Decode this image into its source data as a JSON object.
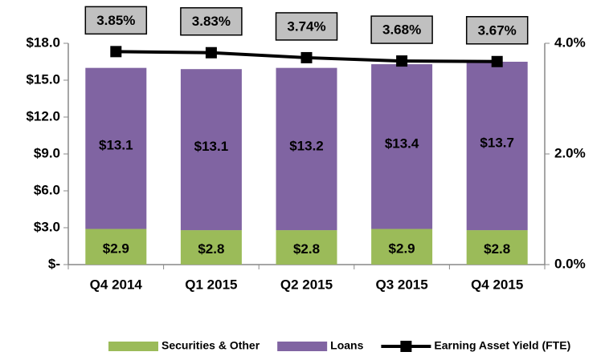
{
  "chart_data": {
    "type": "bar",
    "categories": [
      "Q4 2014",
      "Q1 2015",
      "Q2 2015",
      "Q3 2015",
      "Q4 2015"
    ],
    "series": [
      {
        "name": "Securities & Other",
        "color": "#9bbb59",
        "values": [
          2.9,
          2.8,
          2.8,
          2.9,
          2.8
        ],
        "value_labels": [
          "$2.9",
          "$2.8",
          "$2.8",
          "$2.9",
          "$2.8"
        ]
      },
      {
        "name": "Loans",
        "color": "#8064a2",
        "values": [
          13.1,
          13.1,
          13.2,
          13.4,
          13.7
        ],
        "value_labels": [
          "$13.1",
          "$13.1",
          "$13.2",
          "$13.4",
          "$13.7"
        ]
      },
      {
        "name": "Earning Asset Yield (FTE)",
        "color": "#000000",
        "type": "line",
        "axis": "y2",
        "values": [
          3.85,
          3.83,
          3.74,
          3.68,
          3.67
        ],
        "value_labels": [
          "3.85%",
          "3.83%",
          "3.74%",
          "3.68%",
          "3.67%"
        ]
      }
    ],
    "stacked": true,
    "ylim": [
      0,
      18
    ],
    "yticks": [
      {
        "value": 0,
        "label": "$-"
      },
      {
        "value": 3,
        "label": "$3.0"
      },
      {
        "value": 6,
        "label": "$6.0"
      },
      {
        "value": 9,
        "label": "$9.0"
      },
      {
        "value": 12,
        "label": "$12.0"
      },
      {
        "value": 15,
        "label": "$15.0"
      },
      {
        "value": 18,
        "label": "$18.0"
      }
    ],
    "y2lim": [
      0,
      4
    ],
    "y2ticks": [
      {
        "value": 0,
        "label": "0.0%"
      },
      {
        "value": 2,
        "label": "2.0%"
      },
      {
        "value": 4,
        "label": "4.0%"
      }
    ],
    "legend": "bottom"
  }
}
